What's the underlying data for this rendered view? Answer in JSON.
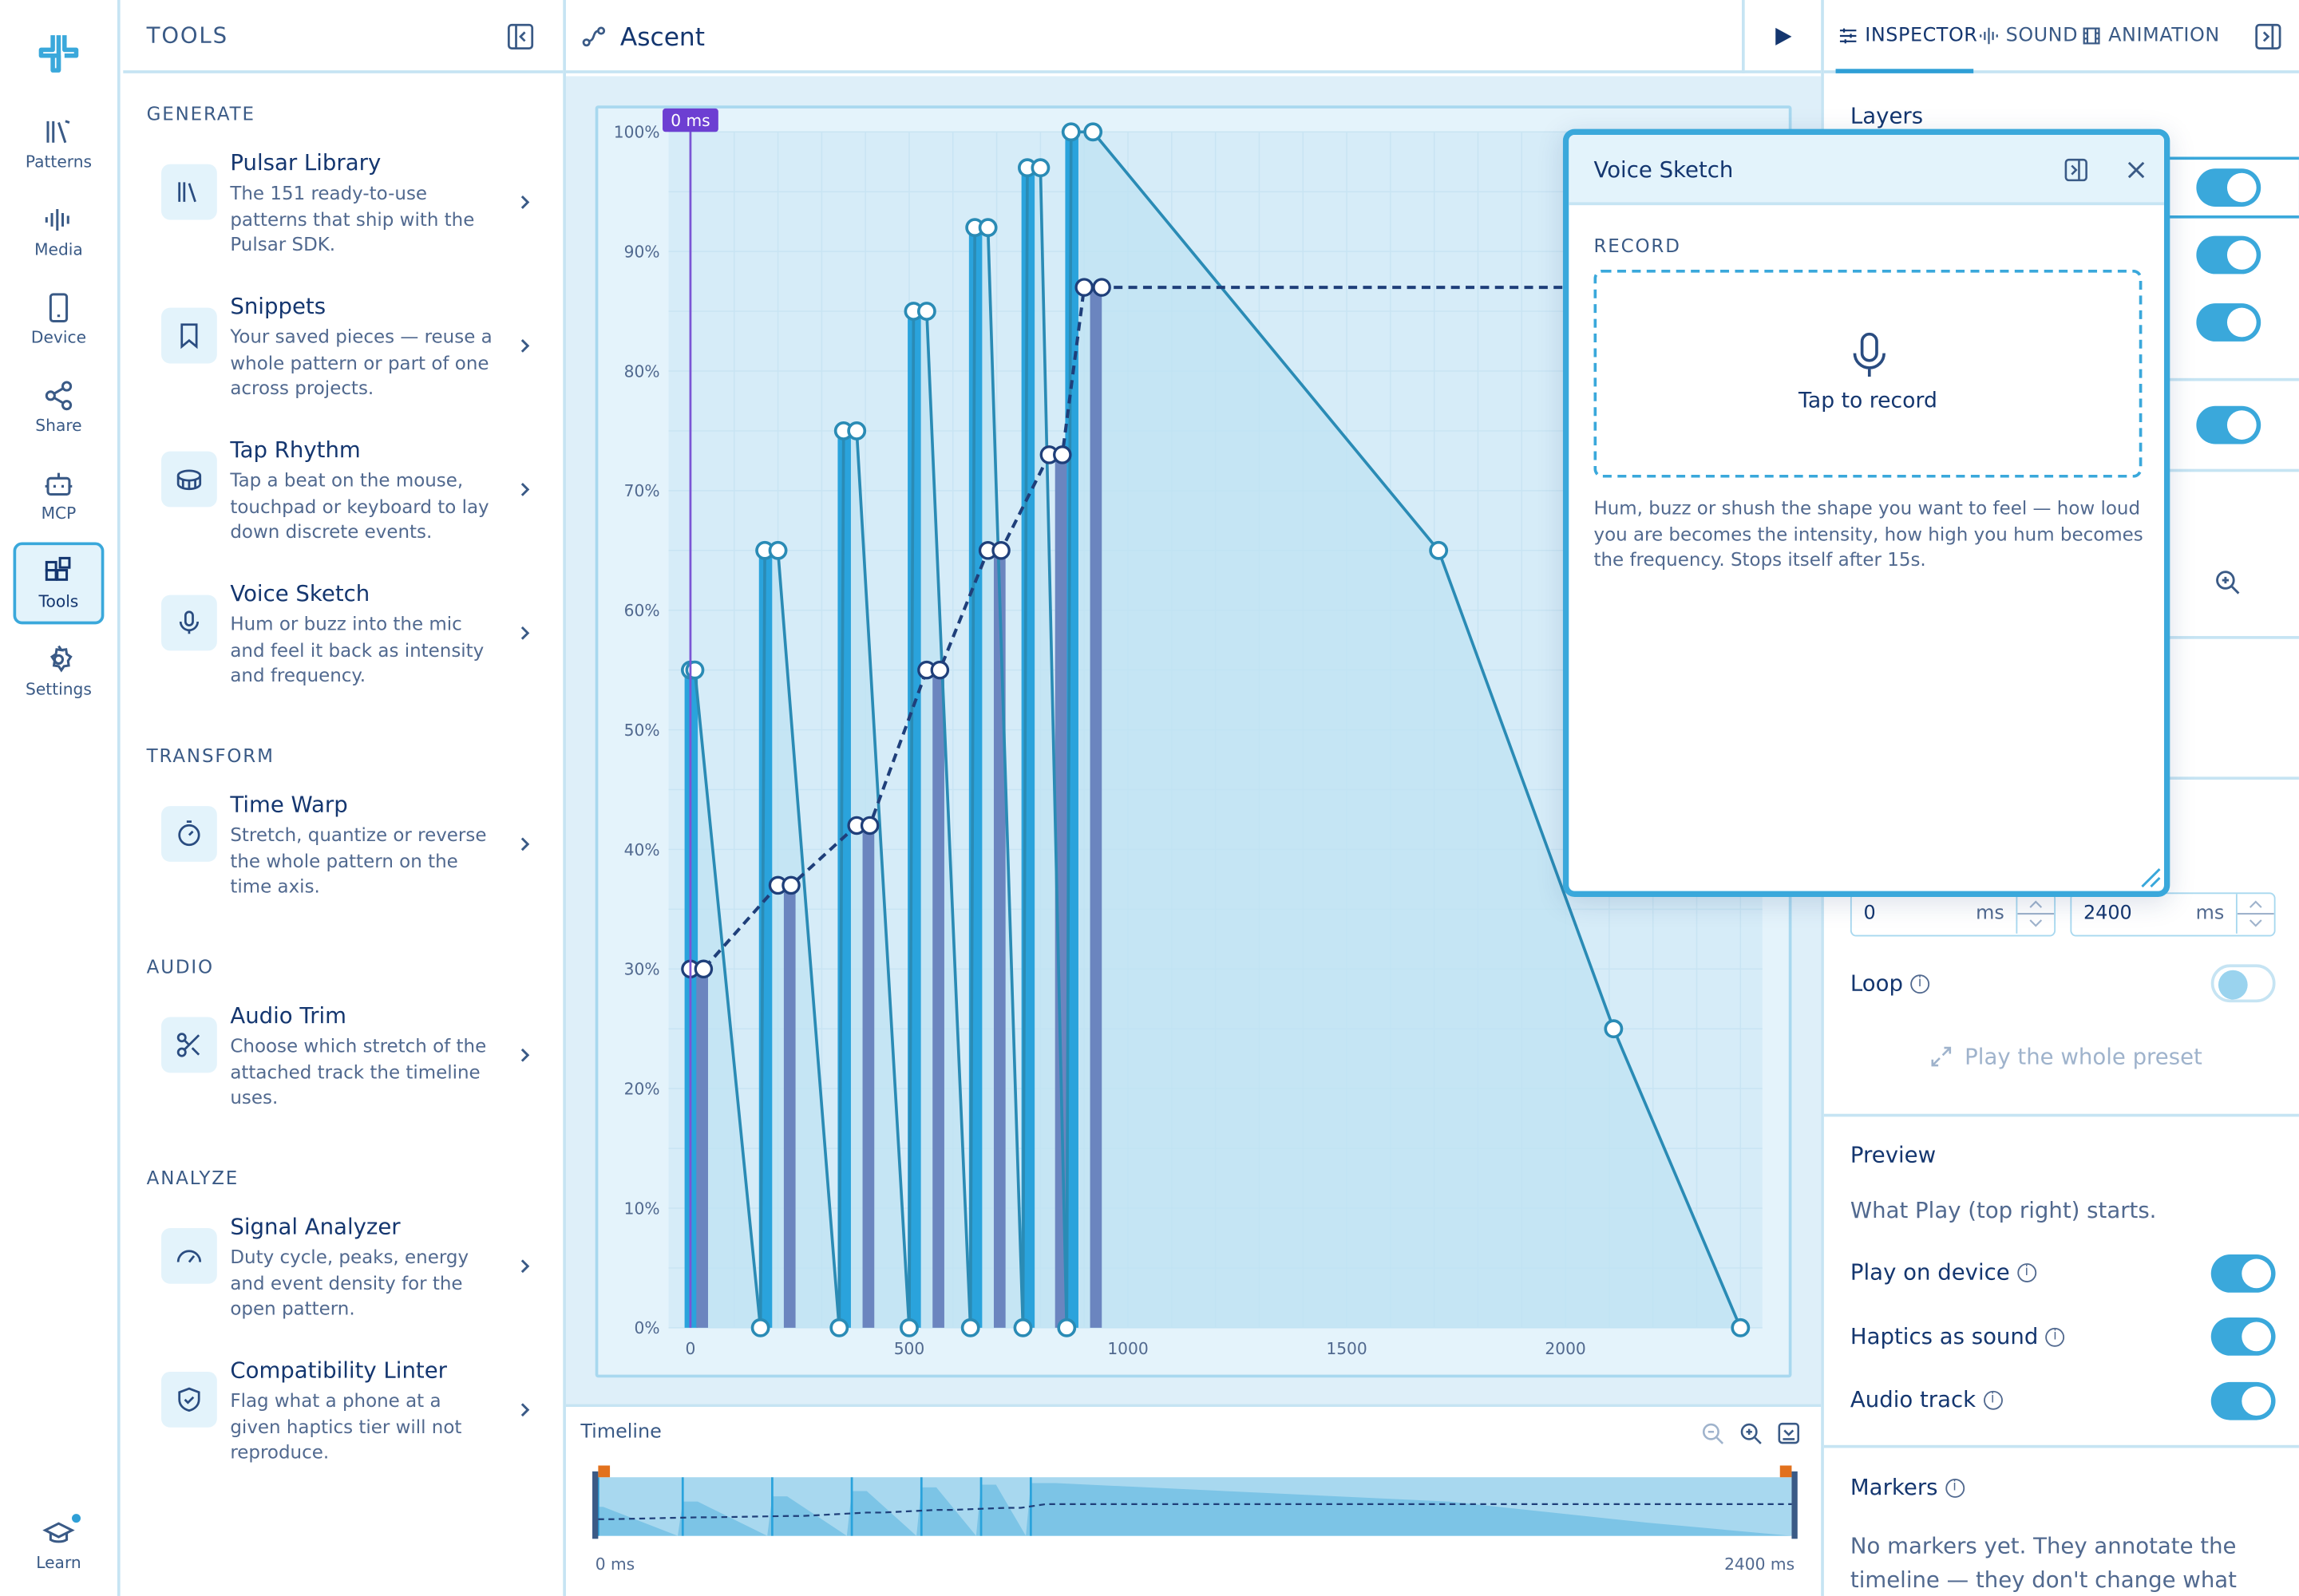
{
  "rail": {
    "items": [
      {
        "label": "Patterns",
        "icon": "library-icon"
      },
      {
        "label": "Media",
        "icon": "waveform-icon"
      },
      {
        "label": "Device",
        "icon": "phone-icon"
      },
      {
        "label": "Share",
        "icon": "share-icon"
      },
      {
        "label": "MCP",
        "icon": "robot-icon"
      },
      {
        "label": "Tools",
        "icon": "grid-tools-icon",
        "active": true
      },
      {
        "label": "Settings",
        "icon": "gear-icon"
      }
    ],
    "learn_label": "Learn"
  },
  "tools": {
    "title": "TOOLS",
    "sections": {
      "generate": "GENERATE",
      "transform": "TRANSFORM",
      "audio": "AUDIO",
      "analyze": "ANALYZE"
    },
    "items": [
      {
        "name": "Pulsar Library",
        "desc": "The 151 ready-to-use patterns that ship with the Pulsar SDK."
      },
      {
        "name": "Snippets",
        "desc": "Your saved pieces — reuse a whole pattern or part of one across projects."
      },
      {
        "name": "Tap Rhythm",
        "desc": "Tap a beat on the mouse, touchpad or keyboard to lay down discrete events."
      },
      {
        "name": "Voice Sketch",
        "desc": "Hum or buzz into the mic and feel it back as intensity and frequency."
      },
      {
        "name": "Time Warp",
        "desc": "Stretch, quantize or reverse the whole pattern on the time axis."
      },
      {
        "name": "Audio Trim",
        "desc": "Choose which stretch of the attached track the timeline uses."
      },
      {
        "name": "Signal Analyzer",
        "desc": "Duty cycle, peaks, energy and event density for the open pattern."
      },
      {
        "name": "Compatibility Linter",
        "desc": "Flag what a phone at a given haptics tier will not reproduce."
      }
    ]
  },
  "editor": {
    "pattern_name": "Ascent",
    "playhead_label": "0 ms"
  },
  "chart_data": {
    "type": "line",
    "x_ticks": [
      "0",
      "500",
      "1000",
      "1500",
      "2000"
    ],
    "y_ticks": [
      "0%",
      "10%",
      "20%",
      "30%",
      "40%",
      "50%",
      "60%",
      "70%",
      "80%",
      "90%",
      "100%"
    ],
    "xlim": [
      -50,
      2450
    ],
    "ylim": [
      0,
      100
    ],
    "series": [
      {
        "role": "intensity-envelope",
        "color": "#2a8bb5",
        "points": [
          [
            0,
            55
          ],
          [
            10,
            55
          ],
          [
            160,
            0
          ],
          [
            170,
            65
          ],
          [
            200,
            65
          ],
          [
            340,
            0
          ],
          [
            350,
            75
          ],
          [
            380,
            75
          ],
          [
            500,
            0
          ],
          [
            510,
            85
          ],
          [
            540,
            85
          ],
          [
            640,
            0
          ],
          [
            650,
            92
          ],
          [
            680,
            92
          ],
          [
            760,
            0
          ],
          [
            770,
            97
          ],
          [
            800,
            97
          ],
          [
            860,
            0
          ],
          [
            870,
            100
          ],
          [
            920,
            100
          ],
          [
            1710,
            65
          ],
          [
            2110,
            25
          ],
          [
            2400,
            0
          ]
        ]
      },
      {
        "role": "frequency-events",
        "color": "#1f3f7a",
        "dashed": true,
        "points": [
          [
            0,
            30
          ],
          [
            30,
            30
          ],
          [
            200,
            37
          ],
          [
            230,
            37
          ],
          [
            380,
            42
          ],
          [
            410,
            42
          ],
          [
            540,
            55
          ],
          [
            570,
            55
          ],
          [
            680,
            65
          ],
          [
            710,
            65
          ],
          [
            820,
            73
          ],
          [
            850,
            73
          ],
          [
            900,
            87
          ],
          [
            940,
            87
          ],
          [
            2400,
            87
          ]
        ]
      }
    ],
    "intensity_bars": [
      [
        0,
        55
      ],
      [
        170,
        65
      ],
      [
        350,
        75
      ],
      [
        510,
        85
      ],
      [
        650,
        92
      ],
      [
        770,
        97
      ],
      [
        870,
        100
      ]
    ],
    "frequency_bars": [
      [
        0,
        30
      ],
      [
        200,
        37
      ],
      [
        380,
        42
      ],
      [
        540,
        55
      ],
      [
        680,
        65
      ],
      [
        820,
        73
      ],
      [
        900,
        87
      ]
    ]
  },
  "timeline": {
    "label": "Timeline",
    "start": "0 ms",
    "end": "2400 ms"
  },
  "inspector": {
    "tabs": [
      {
        "label": "INSPECTOR",
        "active": true
      },
      {
        "label": "SOUND"
      },
      {
        "label": "ANIMATION"
      }
    ],
    "layers_title": "Layers",
    "range": {
      "start_value": "0",
      "end_value": "2400",
      "unit": "ms"
    },
    "loop_label": "Loop",
    "play_whole_label": "Play the whole preset",
    "preview_title": "Preview",
    "preview_desc": "What Play (top right) starts.",
    "preview_toggles": [
      {
        "label": "Play on device",
        "on": true
      },
      {
        "label": "Haptics as sound",
        "on": true
      },
      {
        "label": "Audio track",
        "on": true
      }
    ],
    "markers_title": "Markers",
    "markers_desc": "No markers yet. They annotate the timeline — they don't change what plays."
  },
  "voice_sketch": {
    "title": "Voice Sketch",
    "section": "RECORD",
    "record_label": "Tap to record",
    "description": "Hum, buzz or shush the shape you want to feel — how loud you are becomes the intensity, how high you hum becomes the frequency. Stops itself after 15s."
  },
  "colors": {
    "accent": "#3aa8db",
    "ink": "#14366f",
    "intensity_bar": "#2aa3dc",
    "frequency_bar": "#6b85bf",
    "envelope_fill": "#bfe3f3"
  }
}
